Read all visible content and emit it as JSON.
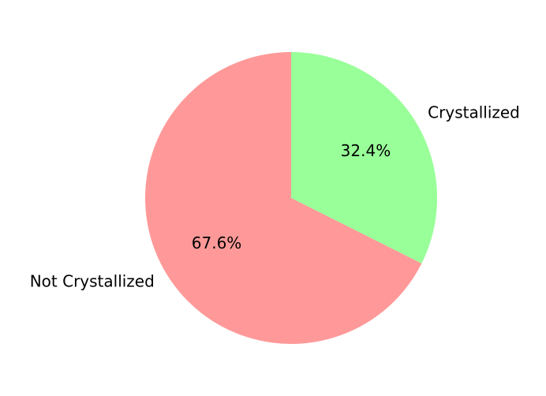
{
  "chart_data": {
    "type": "pie",
    "labels": [
      "Crystallized",
      "Not Crystallized"
    ],
    "values": [
      32.4,
      67.6
    ],
    "percent_labels": [
      "32.4%",
      "67.6%"
    ],
    "colors": [
      "#99ff99",
      "#ff9999"
    ],
    "start_angle_deg": 90,
    "direction": "clockwise",
    "title": ""
  }
}
